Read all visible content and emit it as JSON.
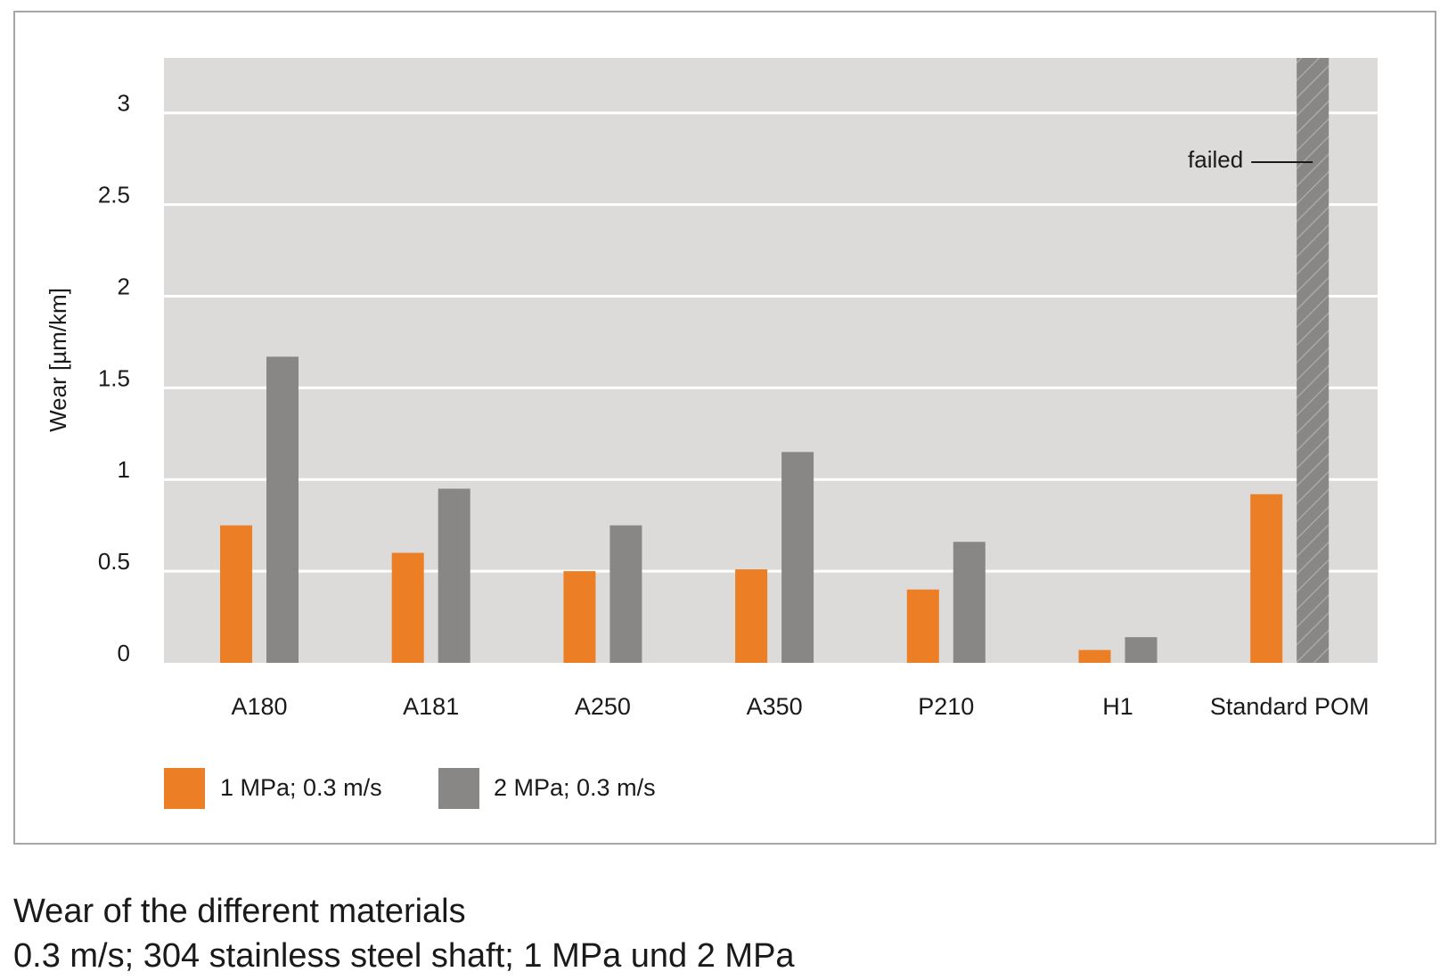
{
  "chart_data": {
    "type": "bar",
    "title": "",
    "xlabel": "",
    "ylabel": "Wear [µm/km]",
    "ylim": [
      0,
      3.3
    ],
    "yticks": [
      "0",
      "0.5",
      "1",
      "1.5",
      "2",
      "2.5",
      "3"
    ],
    "grid": true,
    "categories": [
      "A180",
      "A181",
      "A250",
      "A350",
      "P210",
      "H1",
      "Standard POM"
    ],
    "series": [
      {
        "name": "1 MPa; 0.3 m/s",
        "color": "#ec7f26",
        "values": [
          0.75,
          0.6,
          0.5,
          0.51,
          0.4,
          0.07,
          0.92
        ]
      },
      {
        "name": "2 MPa; 0.3 m/s",
        "color": "#888785",
        "values": [
          1.67,
          0.95,
          0.75,
          1.15,
          0.66,
          0.14,
          null
        ]
      }
    ],
    "annotations": [
      {
        "text": "failed",
        "category": "Standard POM",
        "series": "2 MPa; 0.3 m/s",
        "note_style": "hatched bar extending beyond axis top"
      }
    ],
    "legend_placement": "bottom-left",
    "plot_background": "#dcdbda"
  },
  "caption": {
    "line1": "Wear of the different materials",
    "line2": "0.3 m/s; 304 stainless steel shaft; 1 MPa und 2 MPa"
  }
}
